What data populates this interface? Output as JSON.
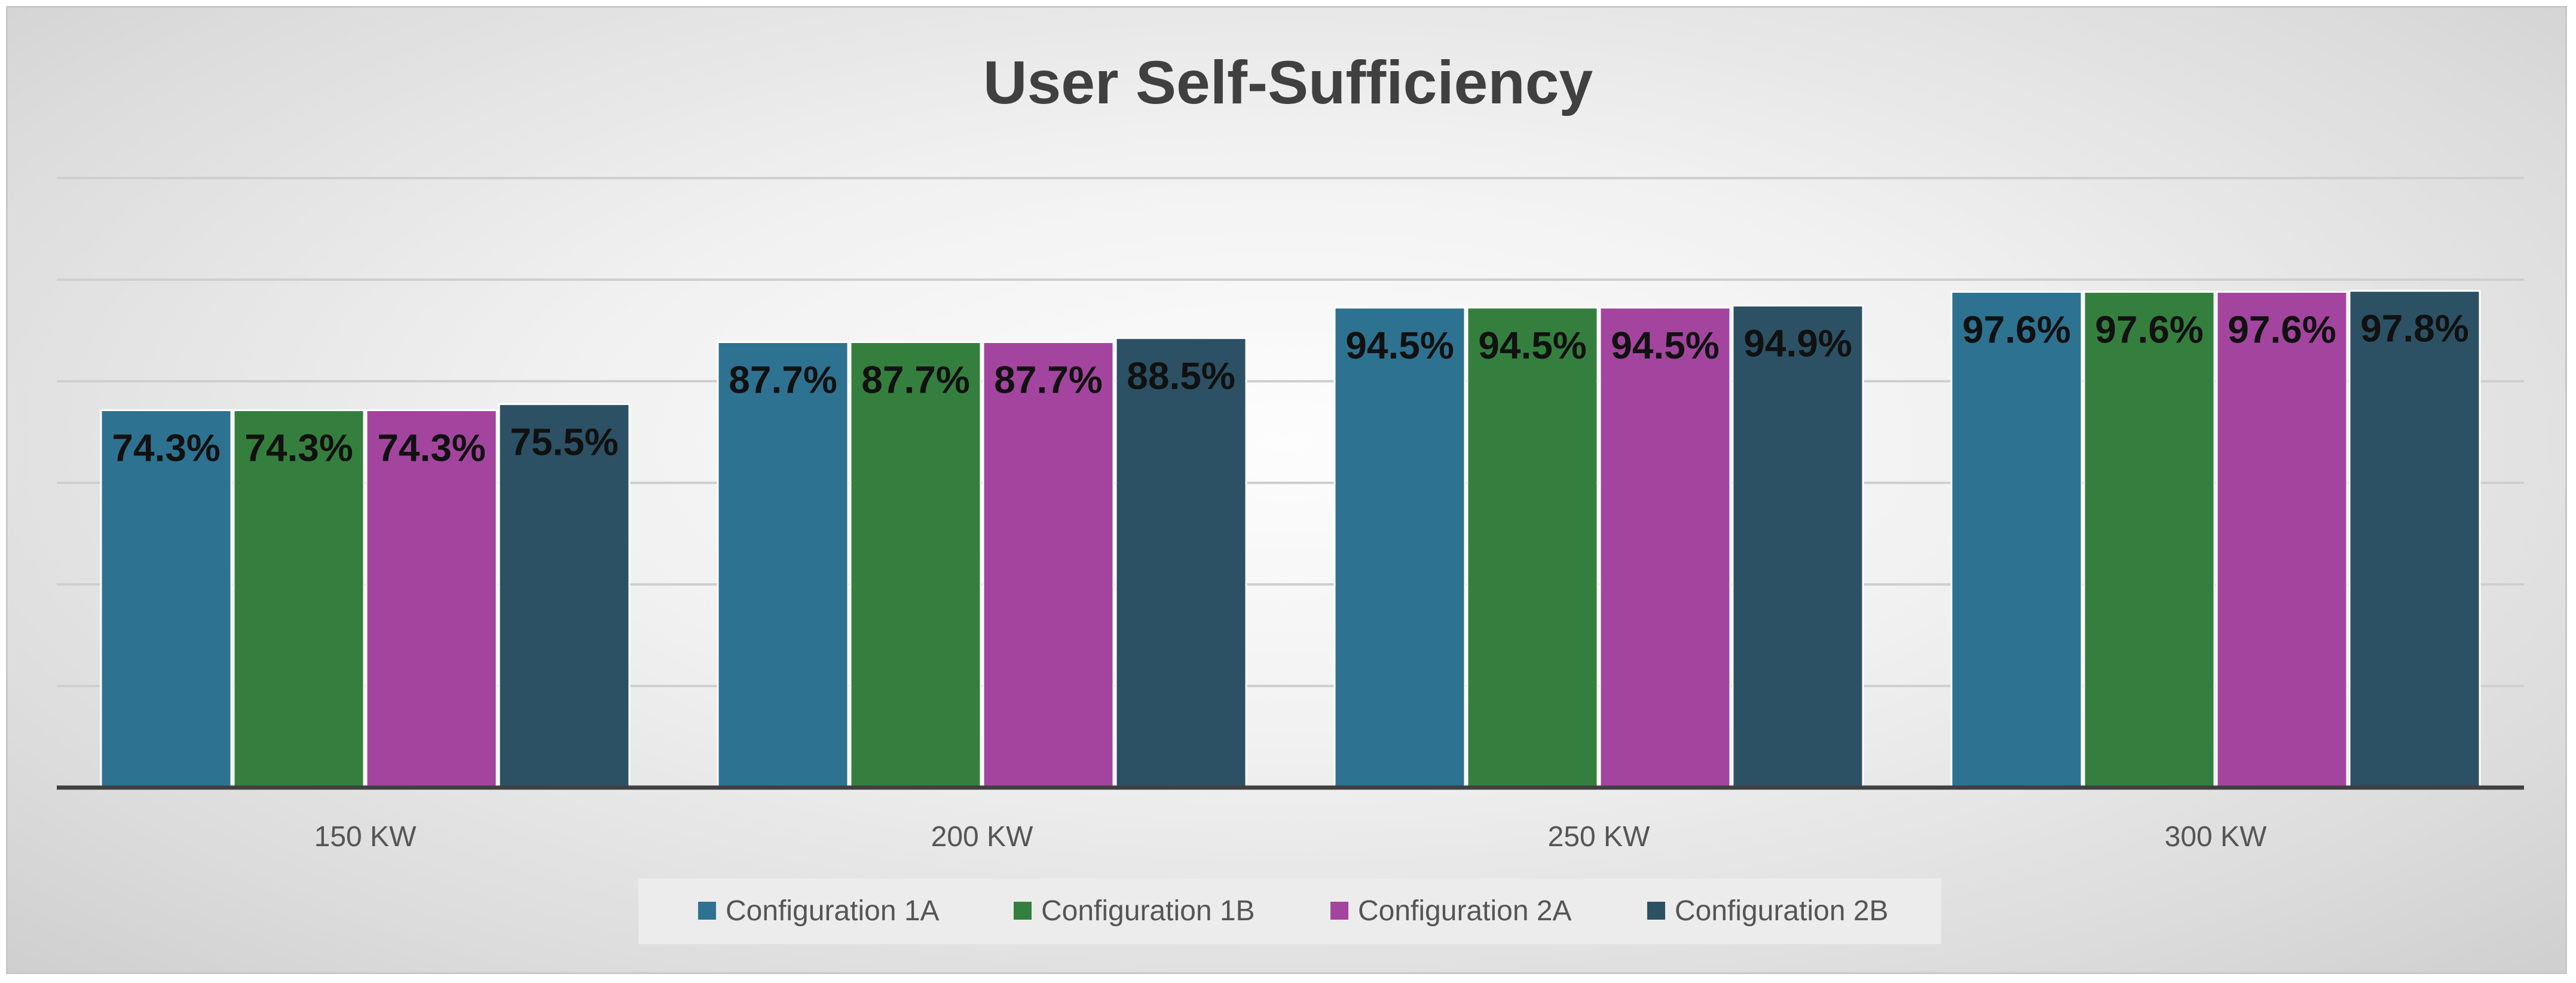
{
  "chart_data": {
    "type": "bar",
    "title": "User Self-Sufficiency",
    "xlabel": "",
    "ylabel": "",
    "ylim": [
      0,
      120
    ],
    "grid": true,
    "legend_position": "bottom",
    "categories": [
      "150 KW",
      "200 KW",
      "250 KW",
      "300 KW"
    ],
    "series": [
      {
        "name": "Configuration 1A",
        "color": "#2e7291",
        "values": [
          74.3,
          87.7,
          94.5,
          97.6
        ],
        "labels": [
          "74.3%",
          "87.7%",
          "94.5%",
          "97.6%"
        ]
      },
      {
        "name": "Configuration 1B",
        "color": "#357f3e",
        "values": [
          74.3,
          87.7,
          94.5,
          97.6
        ],
        "labels": [
          "74.3%",
          "87.7%",
          "94.5%",
          "97.6%"
        ]
      },
      {
        "name": "Configuration 2A",
        "color": "#a3459f",
        "values": [
          74.3,
          87.7,
          94.5,
          97.6
        ],
        "labels": [
          "74.3%",
          "87.7%",
          "94.5%",
          "97.6%"
        ]
      },
      {
        "name": "Configuration 2B",
        "color": "#2c5164",
        "values": [
          75.5,
          88.5,
          94.9,
          97.8
        ],
        "labels": [
          "75.5%",
          "88.5%",
          "94.9%",
          "97.8%"
        ]
      }
    ]
  }
}
